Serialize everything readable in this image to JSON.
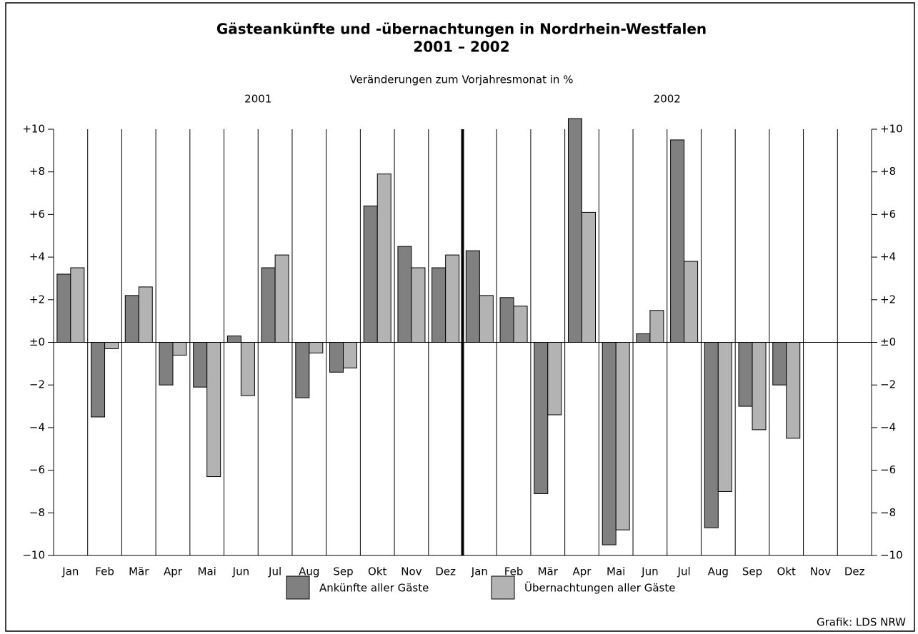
{
  "chart_data": {
    "type": "bar",
    "title": [
      "Gästeankünfte und -übernachtungen in Nordrhein-Westfalen",
      "2001 – 2002"
    ],
    "subtitle": "Veränderungen zum Vorjahresmonat in %",
    "groups": [
      "2001",
      "2002"
    ],
    "categories": [
      "Jan",
      "Feb",
      "Mär",
      "Apr",
      "Mai",
      "Jun",
      "Jul",
      "Aug",
      "Sep",
      "Okt",
      "Nov",
      "Dez",
      "Jan",
      "Feb",
      "Mär",
      "Apr",
      "Mai",
      "Jun",
      "Jul",
      "Aug",
      "Sep",
      "Okt",
      "Nov",
      "Dez"
    ],
    "series": [
      {
        "name": "Ankünfte aller Gäste",
        "color": "#808080",
        "values": [
          3.2,
          -3.5,
          2.2,
          -2.0,
          -2.1,
          0.3,
          3.5,
          -2.6,
          -1.4,
          6.4,
          4.5,
          3.5,
          4.3,
          2.1,
          -7.1,
          10.5,
          -9.5,
          0.4,
          9.5,
          -8.7,
          -3.0,
          -2.0,
          null,
          null
        ]
      },
      {
        "name": "Übernachtungen aller Gäste",
        "color": "#b3b3b3",
        "values": [
          3.5,
          -0.3,
          2.6,
          -0.6,
          -6.3,
          -2.5,
          4.1,
          -0.5,
          -1.2,
          7.9,
          3.5,
          4.1,
          2.2,
          1.7,
          -3.4,
          6.1,
          -8.8,
          1.5,
          3.8,
          -7.0,
          -4.1,
          -4.5,
          null,
          null
        ]
      }
    ],
    "ylim": [
      -10,
      10
    ],
    "yticks": [
      {
        "value": -10,
        "label": "−10"
      },
      {
        "value": -8,
        "label": "−8"
      },
      {
        "value": -6,
        "label": "−6"
      },
      {
        "value": -4,
        "label": "−4"
      },
      {
        "value": -2,
        "label": "−2"
      },
      {
        "value": 0,
        "label": "±0"
      },
      {
        "value": 2,
        "label": "+2"
      },
      {
        "value": 4,
        "label": "+4"
      },
      {
        "value": 6,
        "label": "+6"
      },
      {
        "value": 8,
        "label": "+8"
      },
      {
        "value": 10,
        "label": "+10"
      }
    ],
    "source": "Grafik: LDS NRW"
  }
}
